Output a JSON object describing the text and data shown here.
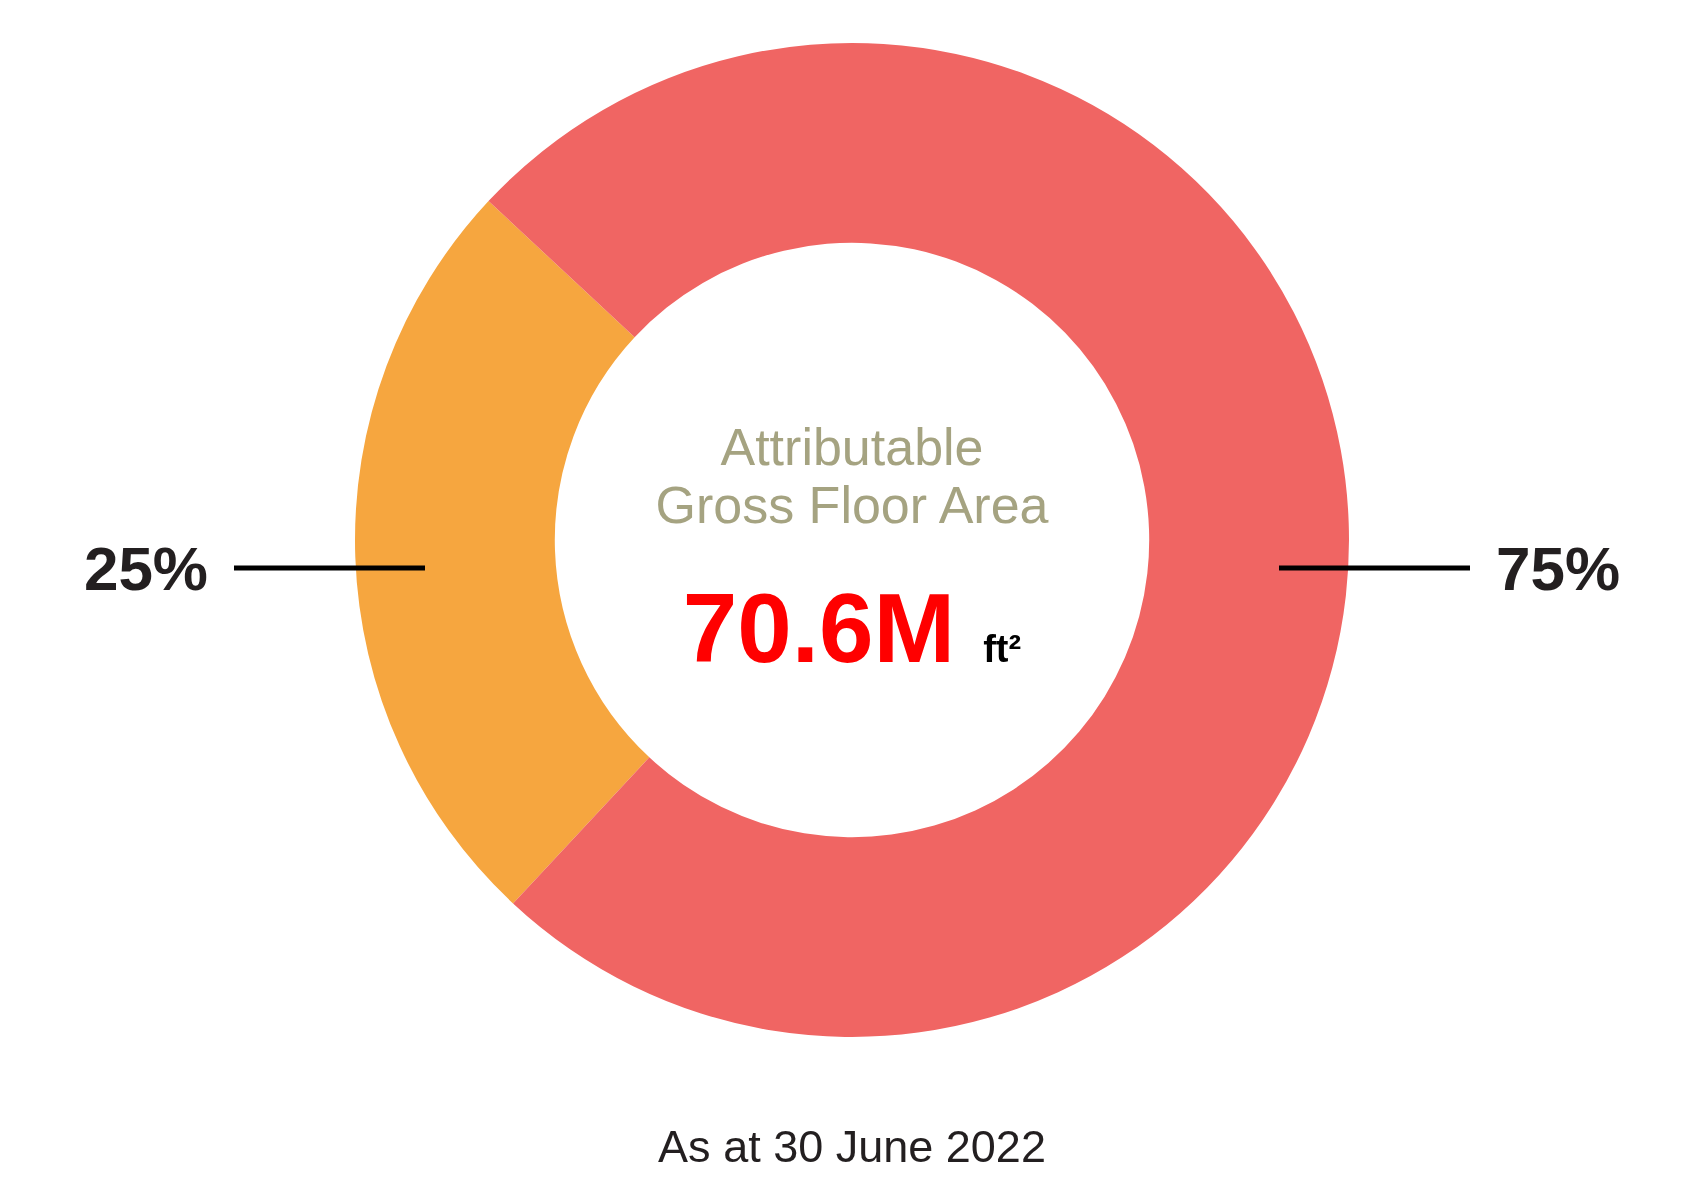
{
  "chart_data": {
    "type": "donut",
    "title": "Attributable Gross Floor Area",
    "subtitle": "70.6M ft²",
    "categories": [
      null,
      null
    ],
    "values": [
      25,
      75
    ],
    "colors": [
      "#f6a63f",
      "#f06563"
    ],
    "value_labels": [
      "25%",
      "75%"
    ],
    "annotations": [
      "As at 30 June 2022"
    ]
  }
}
